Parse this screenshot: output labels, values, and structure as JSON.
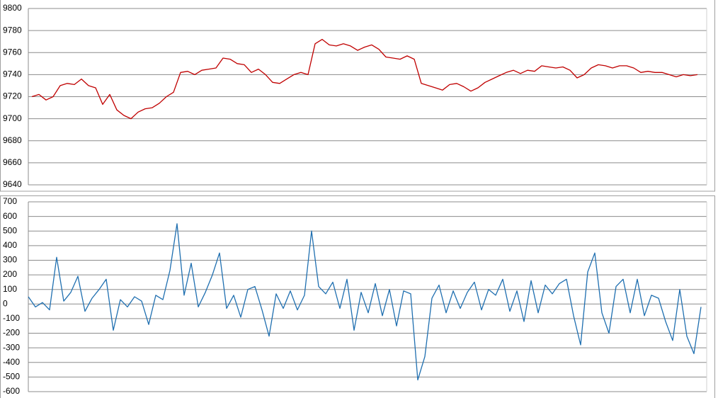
{
  "chart_data": [
    {
      "type": "line",
      "color": "#c00000",
      "grid": true,
      "ylim": [
        9640,
        9800
      ],
      "yticks": [
        9640,
        9660,
        9680,
        9700,
        9720,
        9740,
        9760,
        9780,
        9800
      ],
      "values": [
        9720,
        9722,
        9717,
        9720,
        9730,
        9732,
        9731,
        9736,
        9730,
        9728,
        9713,
        9722,
        9708,
        9703,
        9700,
        9706,
        9709,
        9710,
        9714,
        9720,
        9724,
        9742,
        9743,
        9740,
        9744,
        9745,
        9746,
        9755,
        9754,
        9750,
        9749,
        9742,
        9745,
        9740,
        9733,
        9732,
        9736,
        9740,
        9742,
        9740,
        9768,
        9772,
        9767,
        9766,
        9768,
        9766,
        9762,
        9765,
        9767,
        9763,
        9756,
        9755,
        9754,
        9757,
        9754,
        9732,
        9730,
        9728,
        9726,
        9731,
        9732,
        9729,
        9725,
        9728,
        9733,
        9736,
        9739,
        9742,
        9744,
        9741,
        9744,
        9743,
        9748,
        9747,
        9746,
        9747,
        9744,
        9737,
        9740,
        9746,
        9749,
        9748,
        9746,
        9748,
        9748,
        9746,
        9742,
        9743,
        9742,
        9742,
        9740,
        9738,
        9740,
        9739,
        9740
      ]
    },
    {
      "type": "line",
      "color": "#1f6fb0",
      "grid": true,
      "ylim": [
        -600,
        700
      ],
      "yticks": [
        -600,
        -500,
        -400,
        -300,
        -200,
        -100,
        0,
        100,
        200,
        300,
        400,
        500,
        600,
        700
      ],
      "values": [
        50,
        -20,
        10,
        -40,
        320,
        20,
        80,
        190,
        -50,
        40,
        100,
        170,
        -180,
        30,
        -20,
        50,
        20,
        -140,
        60,
        30,
        230,
        550,
        60,
        280,
        -20,
        80,
        200,
        350,
        -30,
        60,
        -90,
        100,
        120,
        -40,
        -220,
        70,
        -30,
        90,
        -40,
        60,
        500,
        120,
        70,
        150,
        -30,
        170,
        -180,
        80,
        -60,
        140,
        -80,
        100,
        -150,
        90,
        70,
        -520,
        -360,
        40,
        130,
        -60,
        90,
        -30,
        80,
        150,
        -40,
        100,
        60,
        170,
        -50,
        90,
        -120,
        160,
        -60,
        130,
        70,
        140,
        170,
        -80,
        -280,
        220,
        350,
        -60,
        -200,
        120,
        170,
        -60,
        170,
        -80,
        60,
        40,
        -120,
        -250,
        100,
        -220,
        -340,
        -20
      ]
    }
  ]
}
